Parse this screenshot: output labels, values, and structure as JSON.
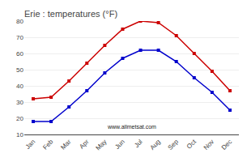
{
  "chart_data": {
    "type": "line",
    "title": "Erie : temperatures (°F)",
    "categories": [
      "Jan",
      "Feb",
      "Mar",
      "Apr",
      "May",
      "Jun",
      "Jul",
      "Aug",
      "Sep",
      "Oct",
      "Nov",
      "Dec"
    ],
    "series": [
      {
        "color": "#cc0000",
        "values": [
          32,
          33,
          43,
          54,
          65,
          75,
          80,
          79,
          71,
          60,
          49,
          37
        ]
      },
      {
        "color": "#0000cc",
        "values": [
          18,
          18,
          27,
          37,
          48,
          57,
          62,
          62,
          55,
          45,
          36,
          25
        ]
      }
    ],
    "marker": "square",
    "ylim": [
      10,
      80
    ],
    "yticks": [
      10,
      20,
      30,
      40,
      50,
      60,
      70,
      80
    ],
    "grid": true,
    "annotations": [
      "www.allmetsat.com"
    ]
  }
}
